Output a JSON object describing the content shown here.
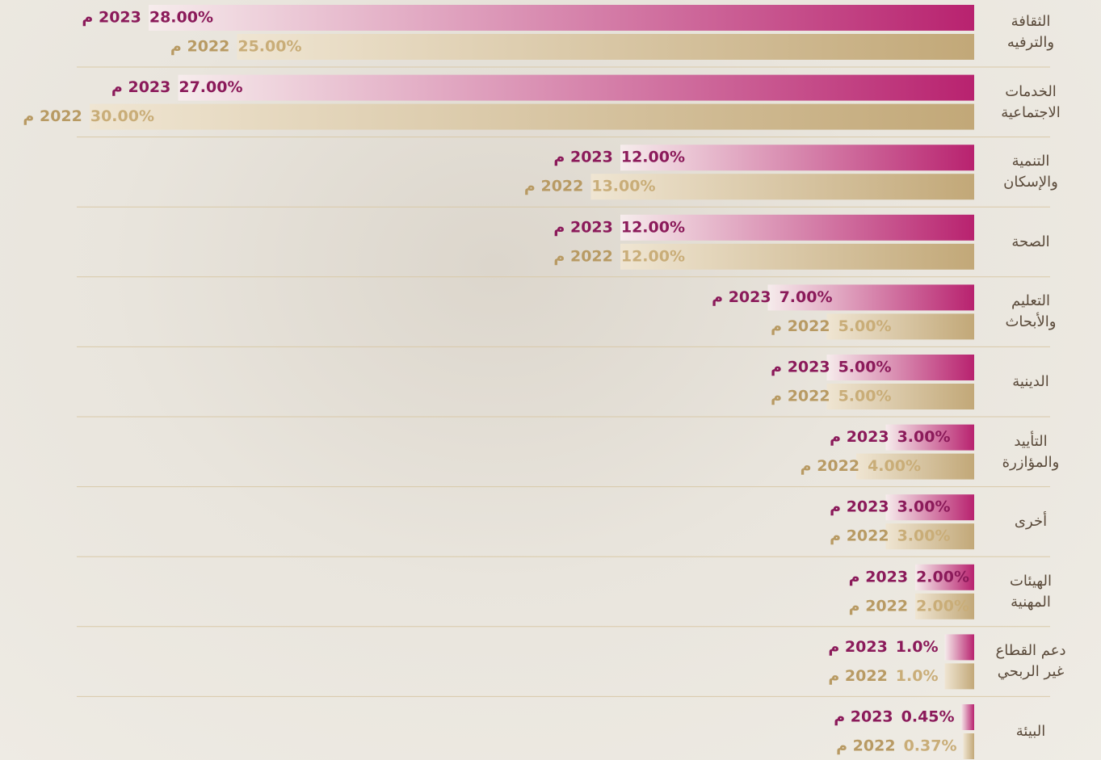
{
  "chart_data": {
    "type": "barh",
    "categories": [
      "الثقافة والترفيه",
      "الخدمات الاجتماعية",
      "التنمية والإسكان",
      "الصحة",
      "التعليم والأبحاث",
      "الدينية",
      "التأييد والمؤازرة",
      "أخرى",
      "الهيئات المهنية",
      "دعم القطاع غير الربحي",
      "البيئة"
    ],
    "series": [
      {
        "name": "2023 م",
        "color": "#b8226f",
        "values": [
          28,
          27,
          12,
          12,
          7,
          5,
          3,
          3,
          2,
          1,
          0.45
        ],
        "value_labels": [
          "28.00%",
          "27.00%",
          "12.00%",
          "12.00%",
          "7.00%",
          "5.00%",
          "3.00%",
          "3.00%",
          "2.00%",
          "1.0%",
          "0.45%"
        ]
      },
      {
        "name": "2022 م",
        "color": "#c2a878",
        "values": [
          25,
          30,
          13,
          12,
          5,
          5,
          4,
          3,
          2,
          1,
          0.37
        ],
        "value_labels": [
          "25.00%",
          "30.00%",
          "13.00%",
          "12.00%",
          "5.00%",
          "5.00%",
          "4.00%",
          "3.00%",
          "2.00%",
          "1.0%",
          "0.37%"
        ]
      }
    ]
  }
}
